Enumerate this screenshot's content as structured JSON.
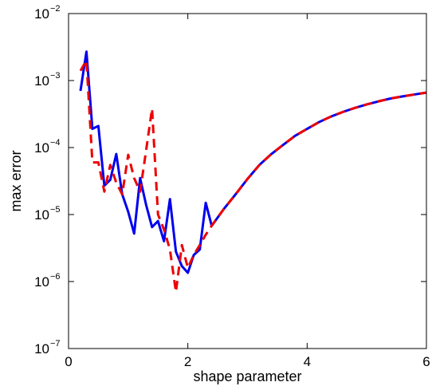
{
  "chart_data": {
    "type": "line",
    "title": "",
    "xlabel": "shape parameter",
    "ylabel": "max error",
    "xlim": [
      0,
      6
    ],
    "ylim": [
      1e-07,
      0.01
    ],
    "yscale": "log",
    "grid": false,
    "x_ticks": [
      {
        "value": 0,
        "label": "0"
      },
      {
        "value": 2,
        "label": "2"
      },
      {
        "value": 4,
        "label": "4"
      },
      {
        "value": 6,
        "label": "6"
      }
    ],
    "y_ticks": [
      {
        "value": 1e-07,
        "base": "10",
        "exp": "−7"
      },
      {
        "value": 1e-06,
        "base": "10",
        "exp": "−6"
      },
      {
        "value": 1e-05,
        "base": "10",
        "exp": "−5"
      },
      {
        "value": 0.0001,
        "base": "10",
        "exp": "−4"
      },
      {
        "value": 0.001,
        "base": "10",
        "exp": "−3"
      },
      {
        "value": 0.01,
        "base": "10",
        "exp": "−2"
      }
    ],
    "series": [
      {
        "color": "#0000ee",
        "style": "solid",
        "points": [
          [
            0.2,
            0.0007
          ],
          [
            0.3,
            0.0027
          ],
          [
            0.4,
            0.00019
          ],
          [
            0.5,
            0.00021
          ],
          [
            0.6,
            2.7e-05
          ],
          [
            0.7,
            3.3e-05
          ],
          [
            0.8,
            8e-05
          ],
          [
            0.9,
            2e-05
          ],
          [
            1.0,
            1.1e-05
          ],
          [
            1.1,
            5.2e-06
          ],
          [
            1.2,
            3.5e-05
          ],
          [
            1.3,
            1.4e-05
          ],
          [
            1.4,
            6.5e-06
          ],
          [
            1.5,
            8e-06
          ],
          [
            1.6,
            4e-06
          ],
          [
            1.7,
            1.7e-05
          ],
          [
            1.8,
            2.8e-06
          ],
          [
            1.9,
            1.7e-06
          ],
          [
            2.0,
            1.35e-06
          ],
          [
            2.1,
            2.5e-06
          ],
          [
            2.2,
            3e-06
          ],
          [
            2.3,
            1.5e-05
          ],
          [
            2.4,
            6.8e-06
          ],
          [
            2.6,
            1.2e-05
          ],
          [
            2.8,
            2e-05
          ],
          [
            3.0,
            3.4e-05
          ],
          [
            3.2,
            5.5e-05
          ],
          [
            3.4,
            8e-05
          ],
          [
            3.6,
            0.00011
          ],
          [
            3.8,
            0.00015
          ],
          [
            4.0,
            0.00019
          ],
          [
            4.2,
            0.00024
          ],
          [
            4.4,
            0.00029
          ],
          [
            4.6,
            0.00034
          ],
          [
            4.8,
            0.00039
          ],
          [
            5.0,
            0.00044
          ],
          [
            5.2,
            0.00049
          ],
          [
            5.4,
            0.00054
          ],
          [
            5.6,
            0.00058
          ],
          [
            5.8,
            0.00062
          ],
          [
            6.0,
            0.00066
          ]
        ]
      },
      {
        "color": "#ee0000",
        "style": "dashed",
        "points": [
          [
            0.2,
            0.0014
          ],
          [
            0.3,
            0.002
          ],
          [
            0.4,
            6e-05
          ],
          [
            0.5,
            6e-05
          ],
          [
            0.6,
            2.2e-05
          ],
          [
            0.7,
            5.5e-05
          ],
          [
            0.8,
            3e-05
          ],
          [
            0.9,
            2e-05
          ],
          [
            1.0,
            7.8e-05
          ],
          [
            1.1,
            3.5e-05
          ],
          [
            1.2,
            2.2e-05
          ],
          [
            1.3,
            9e-05
          ],
          [
            1.4,
            0.00038
          ],
          [
            1.5,
            1e-05
          ],
          [
            1.6,
            6e-06
          ],
          [
            1.7,
            3e-06
          ],
          [
            1.8,
            7e-07
          ],
          [
            1.9,
            3.5e-06
          ],
          [
            2.0,
            1.6e-06
          ],
          [
            2.1,
            2.5e-06
          ],
          [
            2.2,
            3.5e-06
          ],
          [
            2.3,
            5e-06
          ],
          [
            2.4,
            6.8e-06
          ],
          [
            2.6,
            1.2e-05
          ],
          [
            2.8,
            2e-05
          ],
          [
            3.0,
            3.4e-05
          ],
          [
            3.2,
            5.5e-05
          ],
          [
            3.4,
            8e-05
          ],
          [
            3.6,
            0.00011
          ],
          [
            3.8,
            0.00015
          ],
          [
            4.0,
            0.00019
          ],
          [
            4.2,
            0.00024
          ],
          [
            4.4,
            0.00029
          ],
          [
            4.6,
            0.00034
          ],
          [
            4.8,
            0.00039
          ],
          [
            5.0,
            0.00044
          ],
          [
            5.2,
            0.00049
          ],
          [
            5.4,
            0.00054
          ],
          [
            5.6,
            0.00058
          ],
          [
            5.8,
            0.00062
          ],
          [
            6.0,
            0.00066
          ]
        ]
      }
    ]
  }
}
